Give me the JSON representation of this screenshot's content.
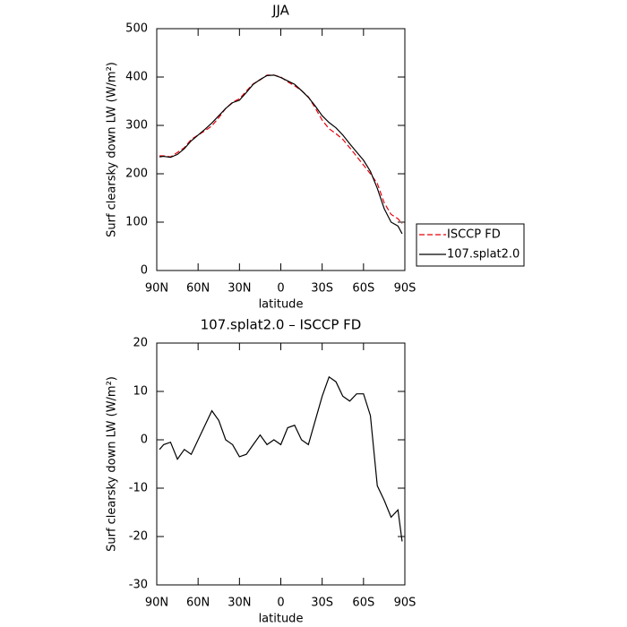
{
  "chart_data": [
    {
      "type": "line",
      "title": "JJA",
      "xlabel": "latitude",
      "ylabel": "Surf clearsky down LW (W/m²)",
      "x": [
        88,
        85,
        80,
        75,
        70,
        65,
        60,
        55,
        50,
        45,
        40,
        35,
        30,
        25,
        20,
        15,
        10,
        5,
        0,
        -5,
        -10,
        -15,
        -20,
        -25,
        -30,
        -35,
        -40,
        -45,
        -50,
        -55,
        -60,
        -65,
        -70,
        -75,
        -80,
        -85,
        -88
      ],
      "series": [
        {
          "name": "ISCCP FD",
          "color": "#e8000b",
          "dash": true,
          "values": [
            237,
            237,
            235,
            244,
            254,
            271,
            280,
            289,
            299,
            316,
            335,
            348,
            355,
            371,
            386,
            394,
            404,
            404,
            400,
            390,
            382,
            372,
            359,
            336,
            311,
            293,
            283,
            271,
            254,
            236,
            218,
            200,
            180,
            140,
            116,
            107,
            97
          ]
        },
        {
          "name": "107.splat2.0",
          "color": "#000000",
          "dash": false,
          "values": [
            235,
            236,
            234,
            240,
            252,
            268,
            280,
            292,
            305,
            320,
            335,
            347,
            352,
            368,
            385,
            395,
            403,
            404,
            399,
            392,
            385,
            372,
            358,
            340,
            320,
            306,
            295,
            280,
            262,
            245,
            228,
            205,
            170,
            128,
            100,
            92,
            76
          ]
        }
      ],
      "xlim": [
        90,
        -90
      ],
      "xticks": [
        {
          "value": 90,
          "label": "90N"
        },
        {
          "value": 60,
          "label": "60N"
        },
        {
          "value": 30,
          "label": "30N"
        },
        0,
        {
          "value": -30,
          "label": "30S"
        },
        {
          "value": -60,
          "label": "60S"
        },
        {
          "value": -90,
          "label": "90S"
        }
      ],
      "ylim": [
        0,
        500
      ],
      "yticks": [
        0,
        100,
        200,
        300,
        400,
        500
      ],
      "legend": "right"
    },
    {
      "type": "line",
      "title": "107.splat2.0 – ISCCP FD",
      "xlabel": "latitude",
      "ylabel": "Surf clearsky down LW (W/m²)",
      "x": [
        88,
        85,
        80,
        75,
        70,
        65,
        60,
        55,
        50,
        45,
        40,
        35,
        30,
        25,
        20,
        15,
        10,
        5,
        0,
        -5,
        -10,
        -15,
        -20,
        -25,
        -30,
        -35,
        -40,
        -45,
        -50,
        -55,
        -60,
        -65,
        -70,
        -75,
        -80,
        -85,
        -88
      ],
      "series": [
        {
          "color": "#000000",
          "dash": false,
          "values": [
            -2,
            -1,
            -0.5,
            -4,
            -2,
            -3,
            0,
            3,
            6,
            4,
            0,
            -1,
            -3.5,
            -3,
            -1,
            1,
            -1,
            0,
            -1,
            2.5,
            3,
            0,
            -1,
            4,
            9,
            13,
            12,
            9,
            8,
            9.5,
            9.5,
            5,
            -9.5,
            -12.5,
            -16,
            -14.5,
            -21
          ]
        }
      ],
      "xlim": [
        90,
        -90
      ],
      "xticks": [
        {
          "value": 90,
          "label": "90N"
        },
        {
          "value": 60,
          "label": "60N"
        },
        {
          "value": 30,
          "label": "30N"
        },
        0,
        {
          "value": -30,
          "label": "30S"
        },
        {
          "value": -60,
          "label": "60S"
        },
        {
          "value": -90,
          "label": "90S"
        }
      ],
      "ylim": [
        -30,
        20
      ],
      "yticks": [
        -30,
        -20,
        -10,
        0,
        10,
        20
      ]
    }
  ]
}
